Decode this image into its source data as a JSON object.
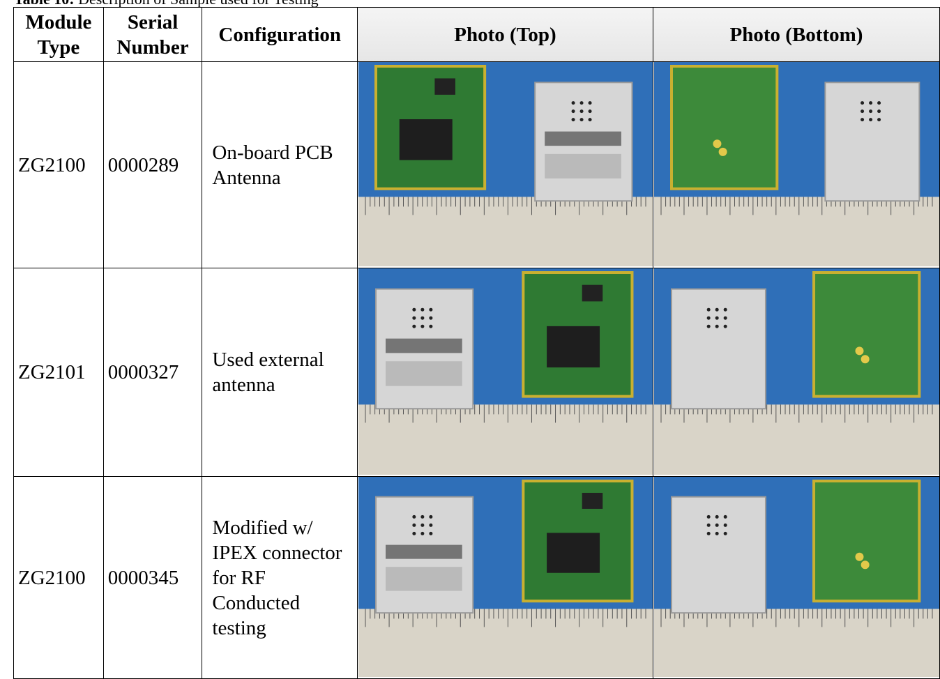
{
  "caption": {
    "label": "Table 10:",
    "text": "Description of Sample used for Testing"
  },
  "table": {
    "headers": [
      "Module Type",
      "Serial Number",
      "Configuration",
      "Photo (Top)",
      "Photo (Bottom)"
    ],
    "rows": [
      [
        "ZG2100",
        "0000289",
        "On-board PCB Antenna"
      ],
      [
        "ZG2101",
        "0000327",
        "Used external antenna"
      ],
      [
        "ZG2100",
        "0000345",
        "Modified w/ IPEX connector for RF Conducted testing"
      ]
    ]
  }
}
